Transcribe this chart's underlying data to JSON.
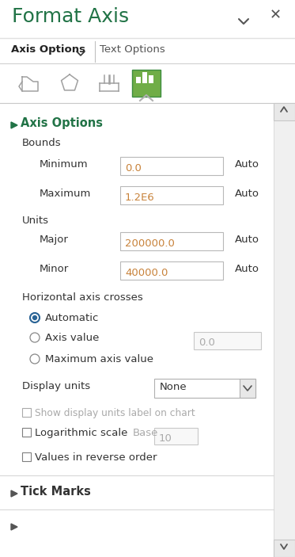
{
  "title": "Format Axis",
  "title_color": "#217346",
  "bg_color": "#f5f5f5",
  "white": "#ffffff",
  "tab1": "Axis Options",
  "tab2": "Text Options",
  "section_header": "Axis Options",
  "bounds_label": "Bounds",
  "minimum_label": "Minimum",
  "minimum_value": "0.0",
  "maximum_label": "Maximum",
  "maximum_value": "1.2E6",
  "units_label": "Units",
  "major_label": "Major",
  "major_value": "200000.0",
  "minor_label": "Minor",
  "minor_value": "40000.0",
  "auto_label": "Auto",
  "hac_label": "Horizontal axis crosses",
  "radio1": "Automatic",
  "radio2": "Axis value",
  "radio2_value": "0.0",
  "radio3": "Maximum axis value",
  "display_units_label": "Display units",
  "display_units_value": "None",
  "show_display_label": "Show display units label on chart",
  "log_scale_label": "Logarithmic scale",
  "base_label": "Base",
  "base_value": "10",
  "reverse_label": "Values in reverse order",
  "tick_marks_label": "Tick Marks",
  "green_color": "#217346",
  "light_green_bg": "#70ad47",
  "input_border": "#b8b8b8",
  "input_text_color": "#c8823a",
  "scrollbar_bg": "#f0f0f0",
  "scrollbar_border": "#c8c8c8",
  "gray_icon": "#808080",
  "label_color": "#333333",
  "disabled_color": "#aaaaaa",
  "separator_color": "#d0d0d0",
  "green_triangle": "#217346",
  "arrow_color": "#555555",
  "tab_separator": "#c0c0c0"
}
